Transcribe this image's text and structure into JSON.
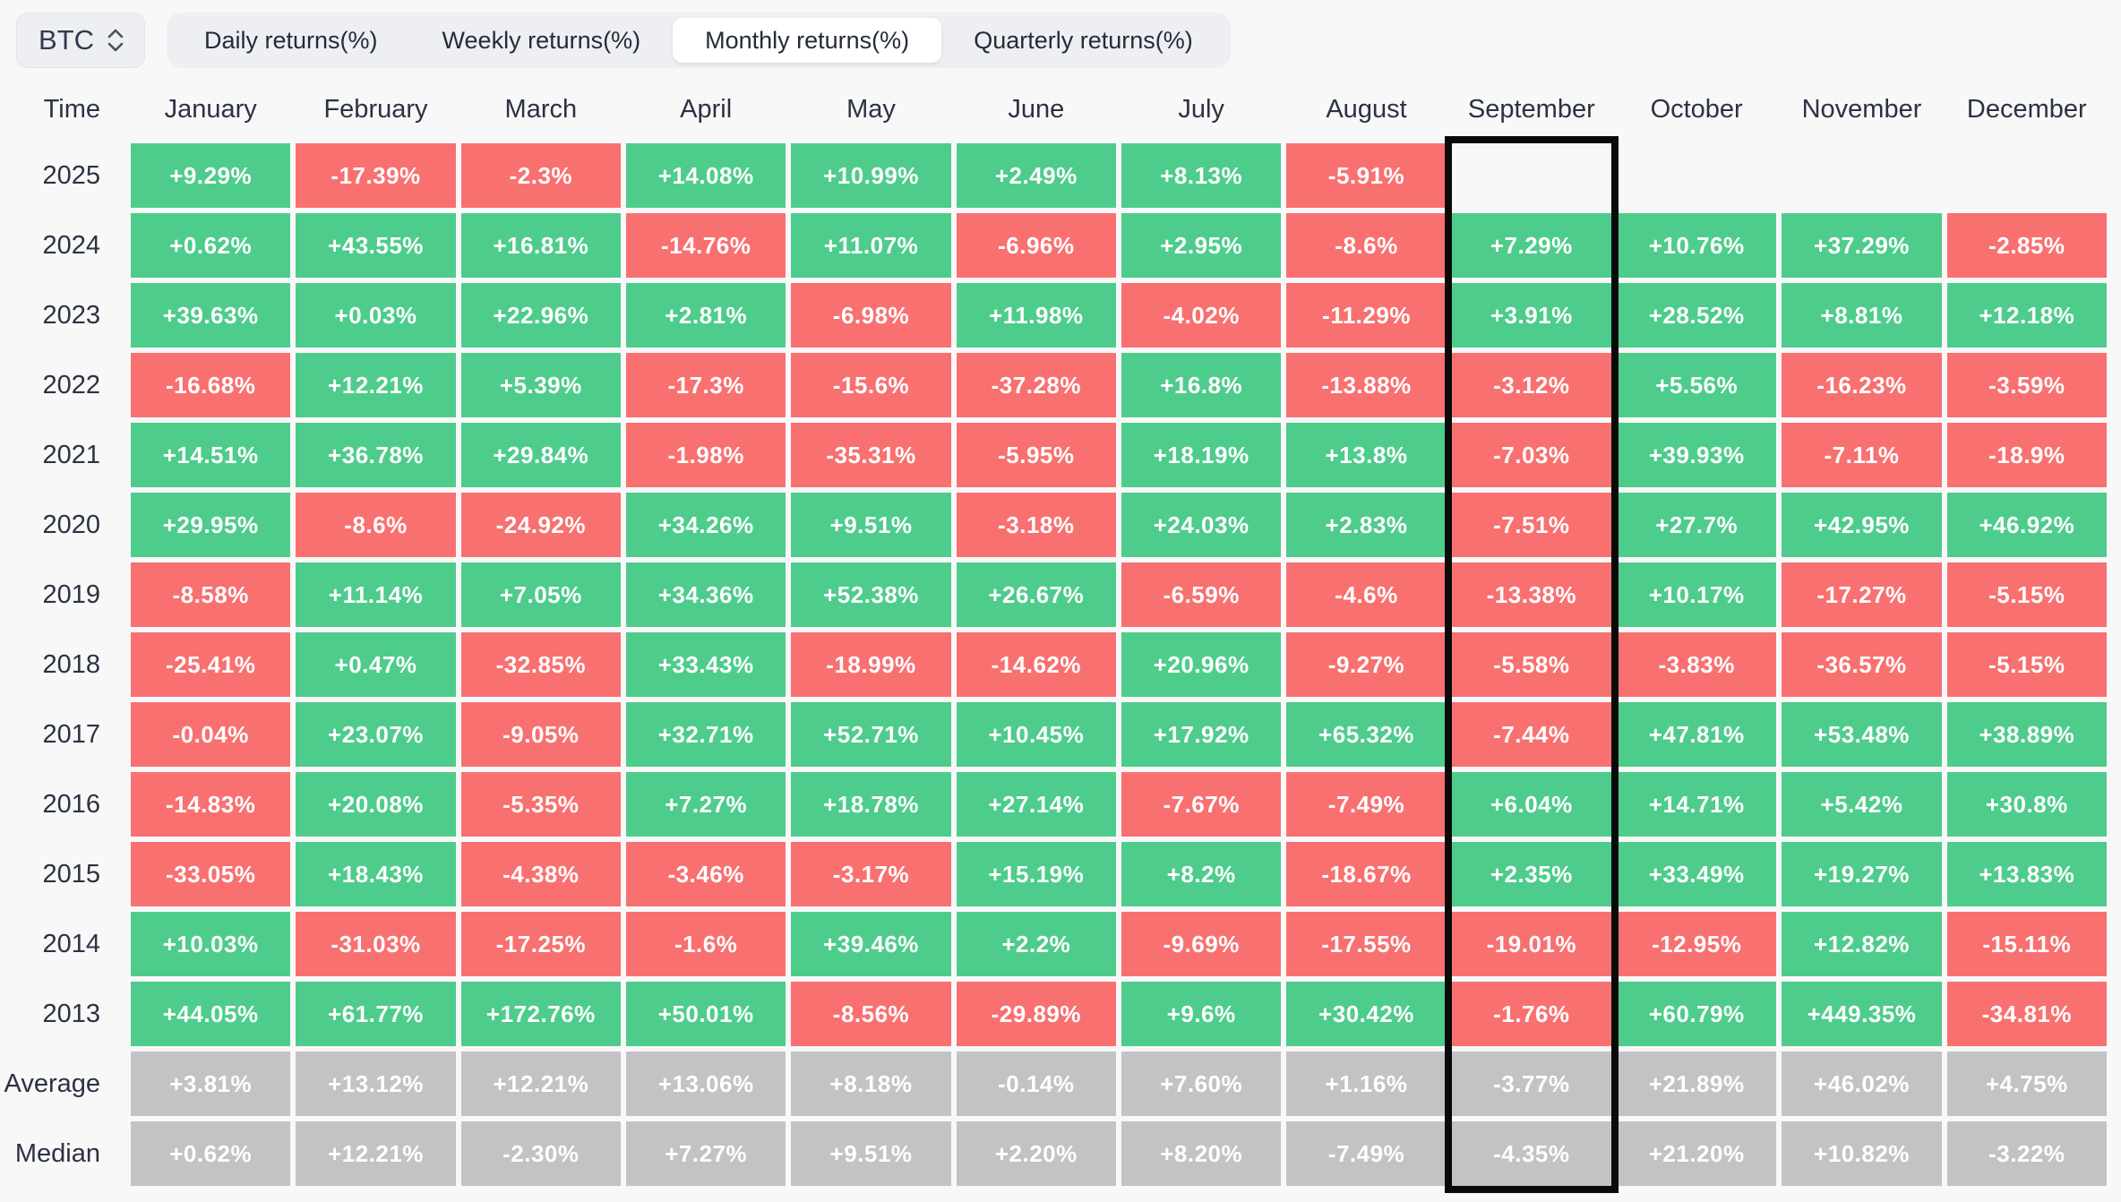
{
  "toolbar": {
    "symbol": "BTC",
    "symbol_selector_icon": "up-down-chevrons-icon",
    "tabs": [
      {
        "label": "Daily returns(%)",
        "active": false
      },
      {
        "label": "Weekly returns(%)",
        "active": false
      },
      {
        "label": "Monthly returns(%)",
        "active": true
      },
      {
        "label": "Quarterly returns(%)",
        "active": false
      }
    ]
  },
  "colors": {
    "positive": "#4ECC8C",
    "negative": "#F97070",
    "summary": "#C3C3C5",
    "highlight_border": "#0A0A0A",
    "background": "#F8F8F9"
  },
  "chart_data": {
    "type": "heatmap",
    "row_header": "Time",
    "unit": "%",
    "highlighted_column": "September",
    "columns": [
      "January",
      "February",
      "March",
      "April",
      "May",
      "June",
      "July",
      "August",
      "September",
      "October",
      "November",
      "December"
    ],
    "rows": [
      {
        "label": "2025",
        "summary": false,
        "values": [
          "+9.29%",
          "-17.39%",
          "-2.3%",
          "+14.08%",
          "+10.99%",
          "+2.49%",
          "+8.13%",
          "-5.91%",
          "",
          "",
          "",
          ""
        ]
      },
      {
        "label": "2024",
        "summary": false,
        "values": [
          "+0.62%",
          "+43.55%",
          "+16.81%",
          "-14.76%",
          "+11.07%",
          "-6.96%",
          "+2.95%",
          "-8.6%",
          "+7.29%",
          "+10.76%",
          "+37.29%",
          "-2.85%"
        ]
      },
      {
        "label": "2023",
        "summary": false,
        "values": [
          "+39.63%",
          "+0.03%",
          "+22.96%",
          "+2.81%",
          "-6.98%",
          "+11.98%",
          "-4.02%",
          "-11.29%",
          "+3.91%",
          "+28.52%",
          "+8.81%",
          "+12.18%"
        ]
      },
      {
        "label": "2022",
        "summary": false,
        "values": [
          "-16.68%",
          "+12.21%",
          "+5.39%",
          "-17.3%",
          "-15.6%",
          "-37.28%",
          "+16.8%",
          "-13.88%",
          "-3.12%",
          "+5.56%",
          "-16.23%",
          "-3.59%"
        ]
      },
      {
        "label": "2021",
        "summary": false,
        "values": [
          "+14.51%",
          "+36.78%",
          "+29.84%",
          "-1.98%",
          "-35.31%",
          "-5.95%",
          "+18.19%",
          "+13.8%",
          "-7.03%",
          "+39.93%",
          "-7.11%",
          "-18.9%"
        ]
      },
      {
        "label": "2020",
        "summary": false,
        "values": [
          "+29.95%",
          "-8.6%",
          "-24.92%",
          "+34.26%",
          "+9.51%",
          "-3.18%",
          "+24.03%",
          "+2.83%",
          "-7.51%",
          "+27.7%",
          "+42.95%",
          "+46.92%"
        ]
      },
      {
        "label": "2019",
        "summary": false,
        "values": [
          "-8.58%",
          "+11.14%",
          "+7.05%",
          "+34.36%",
          "+52.38%",
          "+26.67%",
          "-6.59%",
          "-4.6%",
          "-13.38%",
          "+10.17%",
          "-17.27%",
          "-5.15%"
        ]
      },
      {
        "label": "2018",
        "summary": false,
        "values": [
          "-25.41%",
          "+0.47%",
          "-32.85%",
          "+33.43%",
          "-18.99%",
          "-14.62%",
          "+20.96%",
          "-9.27%",
          "-5.58%",
          "-3.83%",
          "-36.57%",
          "-5.15%"
        ]
      },
      {
        "label": "2017",
        "summary": false,
        "values": [
          "-0.04%",
          "+23.07%",
          "-9.05%",
          "+32.71%",
          "+52.71%",
          "+10.45%",
          "+17.92%",
          "+65.32%",
          "-7.44%",
          "+47.81%",
          "+53.48%",
          "+38.89%"
        ]
      },
      {
        "label": "2016",
        "summary": false,
        "values": [
          "-14.83%",
          "+20.08%",
          "-5.35%",
          "+7.27%",
          "+18.78%",
          "+27.14%",
          "-7.67%",
          "-7.49%",
          "+6.04%",
          "+14.71%",
          "+5.42%",
          "+30.8%"
        ]
      },
      {
        "label": "2015",
        "summary": false,
        "values": [
          "-33.05%",
          "+18.43%",
          "-4.38%",
          "-3.46%",
          "-3.17%",
          "+15.19%",
          "+8.2%",
          "-18.67%",
          "+2.35%",
          "+33.49%",
          "+19.27%",
          "+13.83%"
        ]
      },
      {
        "label": "2014",
        "summary": false,
        "values": [
          "+10.03%",
          "-31.03%",
          "-17.25%",
          "-1.6%",
          "+39.46%",
          "+2.2%",
          "-9.69%",
          "-17.55%",
          "-19.01%",
          "-12.95%",
          "+12.82%",
          "-15.11%"
        ]
      },
      {
        "label": "2013",
        "summary": false,
        "values": [
          "+44.05%",
          "+61.77%",
          "+172.76%",
          "+50.01%",
          "-8.56%",
          "-29.89%",
          "+9.6%",
          "+30.42%",
          "-1.76%",
          "+60.79%",
          "+449.35%",
          "-34.81%"
        ]
      },
      {
        "label": "Average",
        "summary": true,
        "values": [
          "+3.81%",
          "+13.12%",
          "+12.21%",
          "+13.06%",
          "+8.18%",
          "-0.14%",
          "+7.60%",
          "+1.16%",
          "-3.77%",
          "+21.89%",
          "+46.02%",
          "+4.75%"
        ]
      },
      {
        "label": "Median",
        "summary": true,
        "values": [
          "+0.62%",
          "+12.21%",
          "-2.30%",
          "+7.27%",
          "+9.51%",
          "+2.20%",
          "+8.20%",
          "-7.49%",
          "-4.35%",
          "+21.20%",
          "+10.82%",
          "-3.22%"
        ]
      }
    ]
  }
}
